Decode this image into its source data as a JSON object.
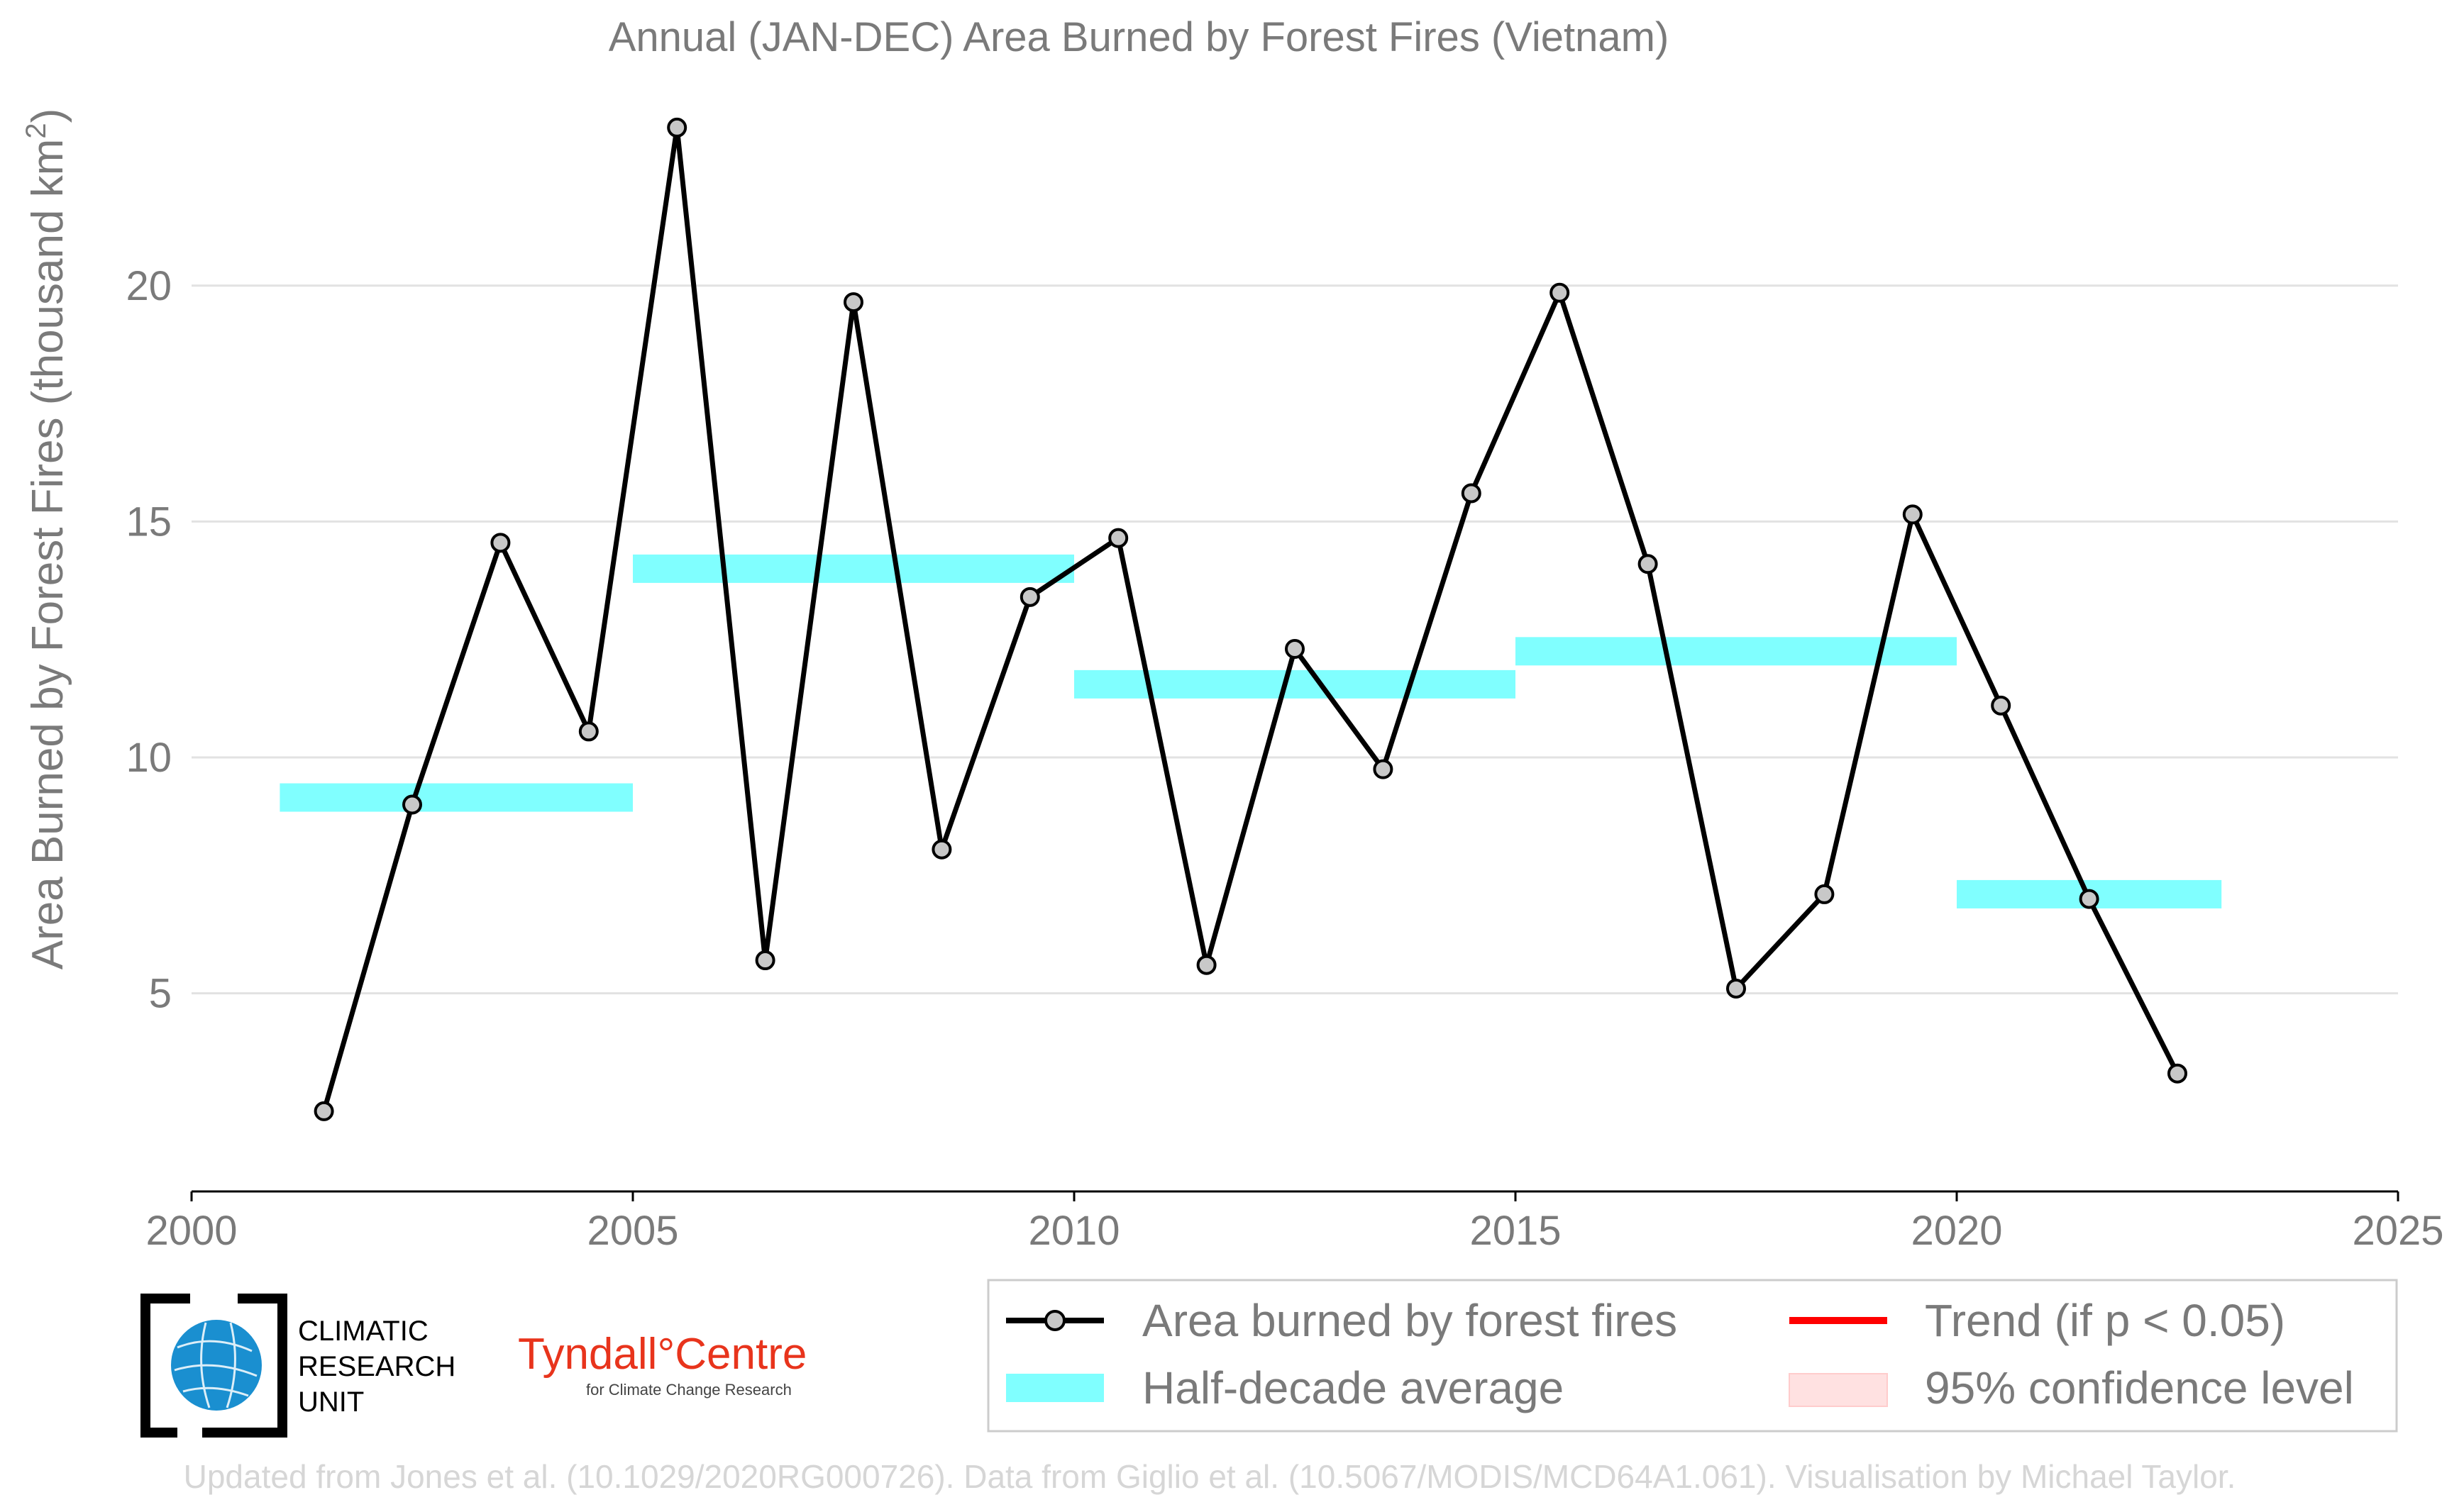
{
  "chart_data": {
    "type": "line",
    "title": "Annual (JAN-DEC) Area Burned by Forest Fires (Vietnam)",
    "ylabel_main": "Area Burned by Forest Fires (thousand km",
    "ylabel_sup": "2",
    "ylabel_close": ")",
    "xlim": [
      2000,
      2025
    ],
    "ylim": [
      0.8,
      23.8
    ],
    "xticks": [
      2000,
      2005,
      2010,
      2015,
      2020,
      2025
    ],
    "yticks": [
      5,
      10,
      15,
      20
    ],
    "grid": true,
    "series": [
      {
        "name": "Area burned by forest fires",
        "color": "#000000",
        "marker_fill": "#c8c8c8",
        "x": [
          2001.5,
          2002.5,
          2003.5,
          2004.5,
          2005.5,
          2006.5,
          2007.5,
          2008.5,
          2009.5,
          2010.5,
          2011.5,
          2012.5,
          2013.5,
          2014.5,
          2015.5,
          2016.5,
          2017.5,
          2018.5,
          2019.5,
          2020.5,
          2021.5,
          2022.5
        ],
        "values": [
          2.5,
          9.0,
          14.55,
          10.55,
          23.35,
          5.7,
          19.65,
          8.05,
          13.4,
          14.65,
          5.6,
          12.3,
          9.75,
          15.6,
          19.85,
          14.1,
          5.1,
          7.1,
          15.15,
          11.1,
          7.0,
          3.3
        ]
      }
    ],
    "half_decade_averages": {
      "name": "Half-decade average",
      "color": "#80ffff",
      "segments": [
        {
          "x0": 2001,
          "x1": 2005,
          "value": 9.15
        },
        {
          "x0": 2005,
          "x1": 2010,
          "value": 14.0
        },
        {
          "x0": 2010,
          "x1": 2015,
          "value": 11.55
        },
        {
          "x0": 2015,
          "x1": 2020,
          "value": 12.25
        },
        {
          "x0": 2020,
          "x1": 2023,
          "value": 7.1
        }
      ]
    },
    "legend": {
      "position": "bottom-right",
      "items": [
        {
          "key": "line",
          "label": "Area burned by forest fires"
        },
        {
          "key": "band",
          "label": "Half-decade average"
        },
        {
          "key": "trend",
          "label": "Trend (if p < 0.05)",
          "color": "#ff0000"
        },
        {
          "key": "ci",
          "label": "95% confidence level",
          "color": "#ffd6d6"
        }
      ]
    }
  },
  "logos": {
    "cru_lines": [
      "CLIMATIC",
      "RESEARCH",
      "UNIT"
    ],
    "tyndall_name": "Tyndall°Centre",
    "tyndall_sub": "for Climate Change Research"
  },
  "footer": "Updated from Jones et al. (10.1029/2020RG000726). Data from Giglio et al. (10.5067/MODIS/MCD64A1.061). Visualisation by Michael Taylor."
}
